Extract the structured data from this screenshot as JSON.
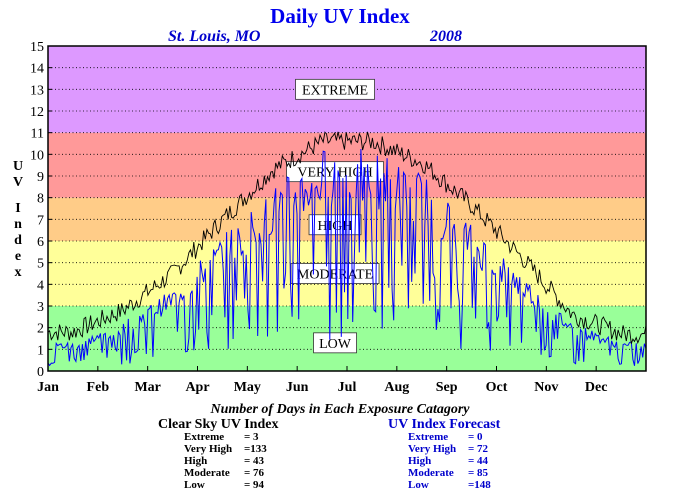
{
  "header": {
    "title": "Daily UV Index",
    "location": "St. Louis, MO",
    "year": "2008"
  },
  "chart_data": {
    "type": "line",
    "title": "Daily UV Index",
    "ylabel": "UV Index",
    "xlabel": "",
    "ylim": [
      0,
      15
    ],
    "yticks": [
      "0",
      "1",
      "2",
      "3",
      "4",
      "5",
      "6",
      "7",
      "8",
      "9",
      "10",
      "11",
      "12",
      "13",
      "14",
      "15"
    ],
    "months": [
      "Jan",
      "Feb",
      "Mar",
      "Apr",
      "May",
      "Jun",
      "Jul",
      "Aug",
      "Sep",
      "Oct",
      "Nov",
      "Dec"
    ],
    "grid": true,
    "bands": [
      {
        "label": "LOW",
        "from": 0,
        "to": 3,
        "color": "#99ff99"
      },
      {
        "label": "MODERATE",
        "from": 3,
        "to": 6,
        "color": "#ffff99"
      },
      {
        "label": "HIGH",
        "from": 6,
        "to": 8,
        "color": "#ffcc88"
      },
      {
        "label": "VERY HIGH",
        "from": 8,
        "to": 11,
        "color": "#ff9999"
      },
      {
        "label": "EXTREME",
        "from": 11,
        "to": 15,
        "color": "#dd99ff"
      }
    ],
    "series": [
      {
        "name": "Clear Sky UV Index",
        "color": "#000000",
        "style": "envelope",
        "month_values": [
          1.8,
          2.8,
          4.5,
          7.0,
          9.3,
          10.6,
          10.6,
          9.6,
          7.6,
          5.2,
          2.6,
          1.7
        ]
      },
      {
        "name": "UV Index Forecast",
        "color": "#0000ff",
        "style": "daily-noisy",
        "month_values": [
          1.2,
          2.0,
          3.4,
          5.6,
          7.6,
          9.2,
          9.2,
          8.2,
          6.0,
          4.0,
          2.0,
          1.2
        ]
      }
    ]
  },
  "summary": {
    "title": "Number of Days in Each Exposure Catagory",
    "clear_sky": {
      "heading": "Clear Sky UV Index",
      "rows": [
        {
          "label": "Extreme",
          "value": "=    3"
        },
        {
          "label": "Very High",
          "value": "=133"
        },
        {
          "label": "High",
          "value": "=   43"
        },
        {
          "label": "Moderate",
          "value": "=   76"
        },
        {
          "label": "Low",
          "value": "=   94"
        }
      ]
    },
    "forecast": {
      "heading": "UV Index Forecast",
      "rows": [
        {
          "label": "Extreme",
          "value": "=    0"
        },
        {
          "label": "Very High",
          "value": "= 72"
        },
        {
          "label": "High",
          "value": "=  44"
        },
        {
          "label": "Moderate",
          "value": "=  85"
        },
        {
          "label": "Low",
          "value": "=148"
        }
      ]
    }
  }
}
